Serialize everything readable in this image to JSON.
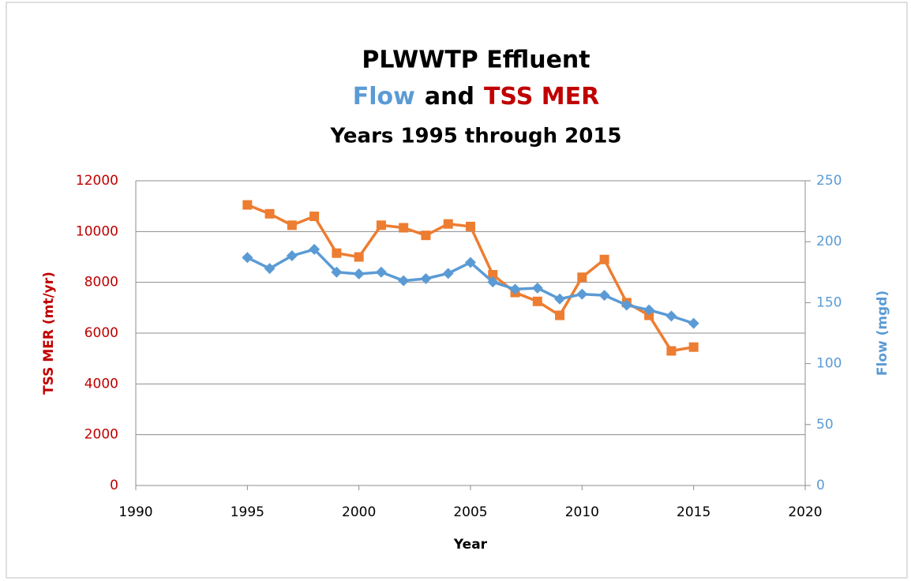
{
  "chart_data": {
    "type": "line",
    "title": "PLWWTP Effluent",
    "title_parts": [
      {
        "text": "Flow",
        "color": "#5b9bd5"
      },
      {
        "text": "and",
        "color": "#000000"
      },
      {
        "text": "TSS MER",
        "color": "#c00000"
      }
    ],
    "subtitle": "Years 1995 through 2015",
    "xlabel": "Year",
    "ylabel": "TSS MER (mt/yr)",
    "ylabel_color": "#c00000",
    "y2label": "Flow (mgd)",
    "y2label_color": "#5b9bd5",
    "x": [
      1995,
      1996,
      1997,
      1998,
      1999,
      2000,
      2001,
      2002,
      2003,
      2004,
      2005,
      2006,
      2007,
      2008,
      2009,
      2010,
      2011,
      2012,
      2013,
      2014,
      2015
    ],
    "series": [
      {
        "name": "TSS MER",
        "color": "#ed7d31",
        "marker": "square",
        "axis": "y",
        "values": [
          11050,
          10700,
          10250,
          10600,
          9150,
          9000,
          10250,
          10150,
          9850,
          10300,
          10200,
          8300,
          7600,
          7250,
          6700,
          8200,
          8900,
          7200,
          6700,
          5300,
          5450
        ]
      },
      {
        "name": "Flow",
        "color": "#5b9bd5",
        "marker": "diamond",
        "axis": "y2",
        "values": [
          187,
          178,
          188.5,
          193.7,
          175,
          173.6,
          175,
          168,
          169.7,
          174,
          183,
          167,
          161,
          162,
          153,
          157,
          156,
          148,
          144,
          139,
          133
        ]
      }
    ],
    "xlim": [
      1990,
      2020
    ],
    "xticks": [
      1990,
      1995,
      2000,
      2005,
      2010,
      2015,
      2020
    ],
    "ylim": [
      0,
      12000
    ],
    "yticks": [
      0,
      2000,
      4000,
      6000,
      8000,
      10000,
      12000
    ],
    "y2lim": [
      0,
      250
    ],
    "y2ticks": [
      0,
      50,
      100,
      150,
      200,
      250
    ],
    "grid": true
  }
}
